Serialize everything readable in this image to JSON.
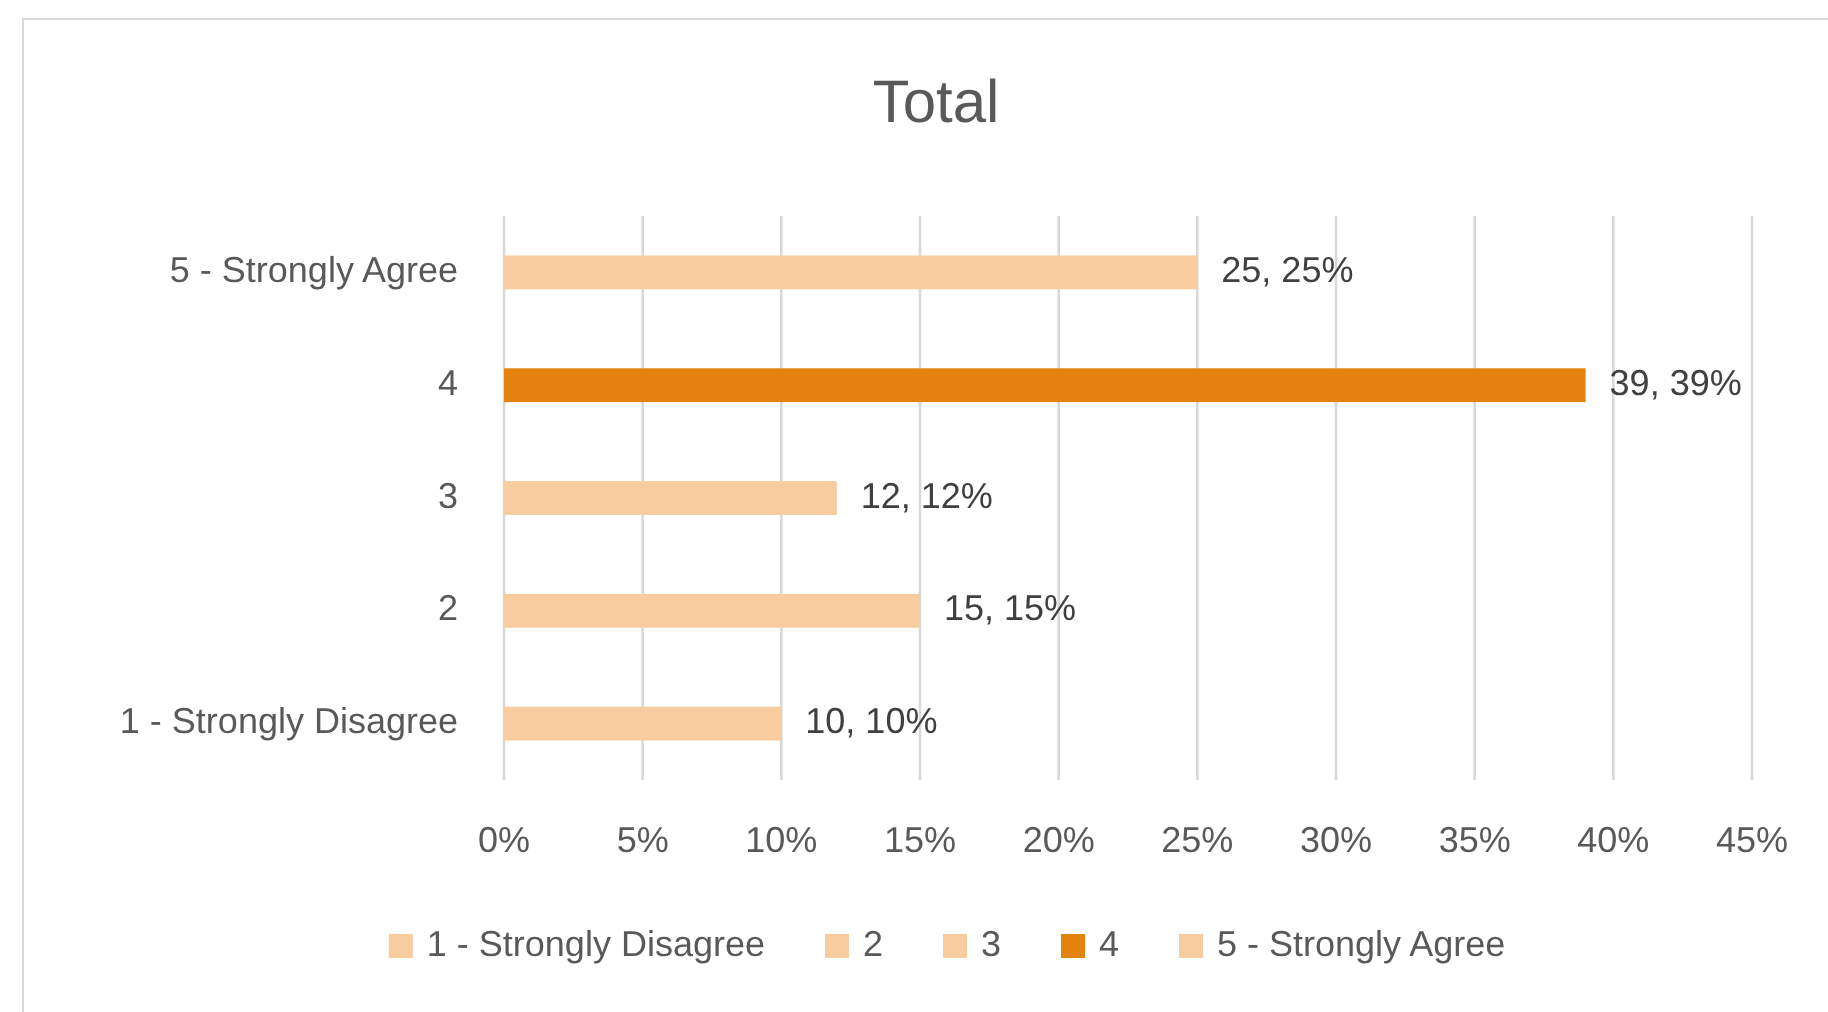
{
  "chart_data": {
    "type": "bar",
    "orientation": "horizontal",
    "stacked": true,
    "title": "Total",
    "categories": [
      "5 - Strongly Agree",
      "4",
      "3",
      "2",
      "1 - Strongly Disagree"
    ],
    "series": [
      {
        "name": "1 - Strongly Disagree",
        "color": "#f7cd9f",
        "values": [
          null,
          null,
          null,
          null,
          10
        ],
        "value_labels": [
          null,
          null,
          null,
          null,
          "10, 10%"
        ]
      },
      {
        "name": "2",
        "color": "#f7cd9f",
        "values": [
          null,
          null,
          null,
          15,
          null
        ],
        "value_labels": [
          null,
          null,
          null,
          "15, 15%",
          null
        ]
      },
      {
        "name": "3",
        "color": "#f7cd9f",
        "values": [
          null,
          null,
          12,
          null,
          null
        ],
        "value_labels": [
          null,
          null,
          "12, 12%",
          null,
          null
        ]
      },
      {
        "name": "4",
        "color": "#e4820f",
        "values": [
          null,
          39,
          null,
          null,
          null
        ],
        "value_labels": [
          null,
          "39, 39%",
          null,
          null,
          null
        ]
      },
      {
        "name": "5 - Strongly Agree",
        "color": "#f7cd9f",
        "values": [
          25,
          null,
          null,
          null,
          null
        ],
        "value_labels": [
          "25, 25%",
          null,
          null,
          null,
          null
        ]
      }
    ],
    "xlim": [
      0,
      45
    ],
    "xticks": [
      {
        "value": 0,
        "label": "0%"
      },
      {
        "value": 5,
        "label": "5%"
      },
      {
        "value": 10,
        "label": "10%"
      },
      {
        "value": 15,
        "label": "15%"
      },
      {
        "value": 20,
        "label": "20%"
      },
      {
        "value": 25,
        "label": "25%"
      },
      {
        "value": 30,
        "label": "30%"
      },
      {
        "value": 35,
        "label": "35%"
      },
      {
        "value": 40,
        "label": "40%"
      },
      {
        "value": 45,
        "label": "45%"
      }
    ],
    "grid": "x",
    "legend": "bottom"
  }
}
